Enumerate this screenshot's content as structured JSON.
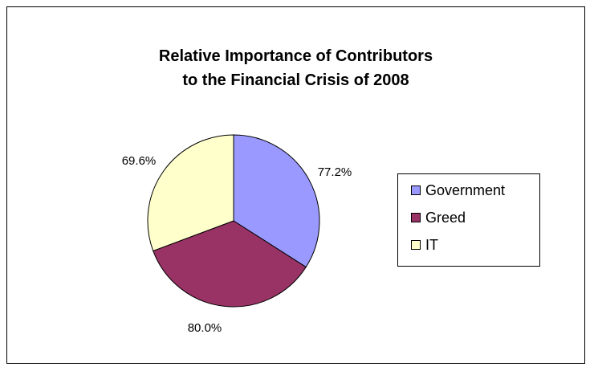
{
  "chart_data": {
    "type": "pie",
    "title": [
      "Relative Importance of Contributors",
      "to the Financial Crisis of 2008"
    ],
    "categories": [
      "Government",
      "Greed",
      "IT"
    ],
    "values": [
      77.2,
      80.0,
      69.6
    ],
    "value_labels": [
      "77.2%",
      "80.0%",
      "69.6%"
    ],
    "colors": [
      "#9999ff",
      "#993366",
      "#ffffcc"
    ],
    "legend_position": "right"
  }
}
